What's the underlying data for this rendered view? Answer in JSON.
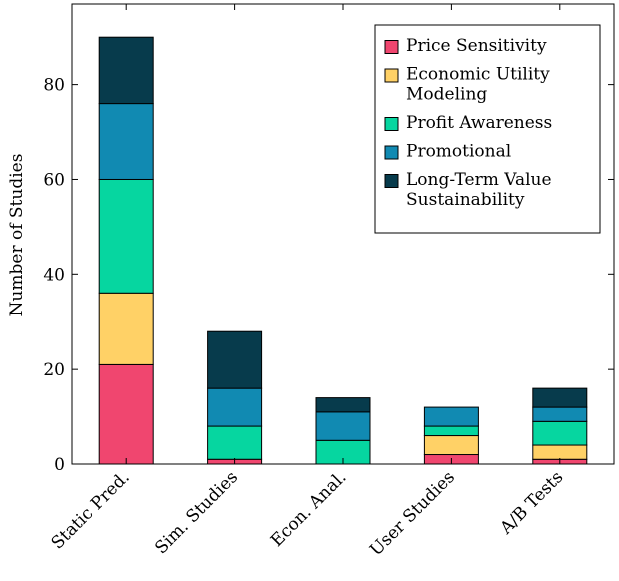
{
  "chart_data": {
    "type": "bar",
    "stacked": true,
    "categories": [
      "Static Pred.",
      "Sim. Studies",
      "Econ. Anal.",
      "User Studies",
      "A/B Tests"
    ],
    "series": [
      {
        "name": "Price Sensitivity",
        "color": "#f0466f",
        "values": [
          21,
          1,
          0,
          2,
          1
        ]
      },
      {
        "name": "Economic Utility Modeling",
        "color": "#ffd166",
        "values": [
          15,
          0,
          0,
          4,
          3
        ]
      },
      {
        "name": "Profit Awareness",
        "color": "#06d6a0",
        "values": [
          24,
          7,
          5,
          2,
          5
        ]
      },
      {
        "name": "Promotional",
        "color": "#118ab2",
        "values": [
          16,
          8,
          6,
          4,
          3
        ]
      },
      {
        "name": "Long-Term Value Sustainability",
        "color": "#073b4c",
        "values": [
          14,
          12,
          3,
          0,
          4
        ]
      }
    ],
    "legend_lines": [
      [
        "Price Sensitivity"
      ],
      [
        "Economic Utility",
        "Modeling"
      ],
      [
        "Profit Awareness"
      ],
      [
        "Promotional"
      ],
      [
        "Long-Term Value",
        "Sustainability"
      ]
    ],
    "ylabel": "Number of Studies",
    "xlabel": "",
    "title": "",
    "ylim": [
      0,
      97
    ],
    "yticks": [
      0,
      20,
      40,
      60,
      80
    ],
    "grid": false,
    "legend_position": "top-right"
  }
}
